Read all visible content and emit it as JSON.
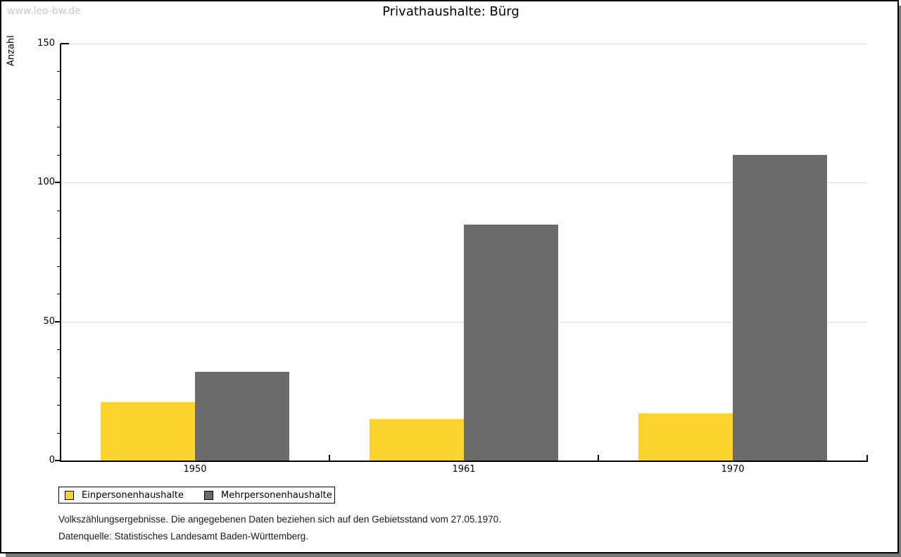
{
  "watermark": "www.leo-bw.de",
  "chart_data": {
    "type": "bar",
    "title": "Privathaushalte: Bürg",
    "ylabel": "Anzahl",
    "xlabel": "",
    "categories": [
      "1950",
      "1961",
      "1970"
    ],
    "series": [
      {
        "name": "Einpersonenhaushalte",
        "color": "#fbd32d",
        "values": [
          21,
          15,
          17
        ]
      },
      {
        "name": "Mehrpersonenhaushalte",
        "color": "#6b6b6b",
        "values": [
          32,
          85,
          110
        ]
      }
    ],
    "ylim": [
      0,
      150
    ],
    "yticks": [
      0,
      50,
      100,
      150
    ],
    "minor_tick_step": 10,
    "grid": true,
    "grid_color": "#e0e0e0",
    "legend_position": "bottom-left-outside"
  },
  "footer": {
    "line1": "Volkszählungsergebnisse. Die angegebenen Daten beziehen sich auf den Gebietsstand vom 27.05.1970.",
    "line2": "Datenquelle: Statistisches Landesamt Baden-Württemberg."
  }
}
